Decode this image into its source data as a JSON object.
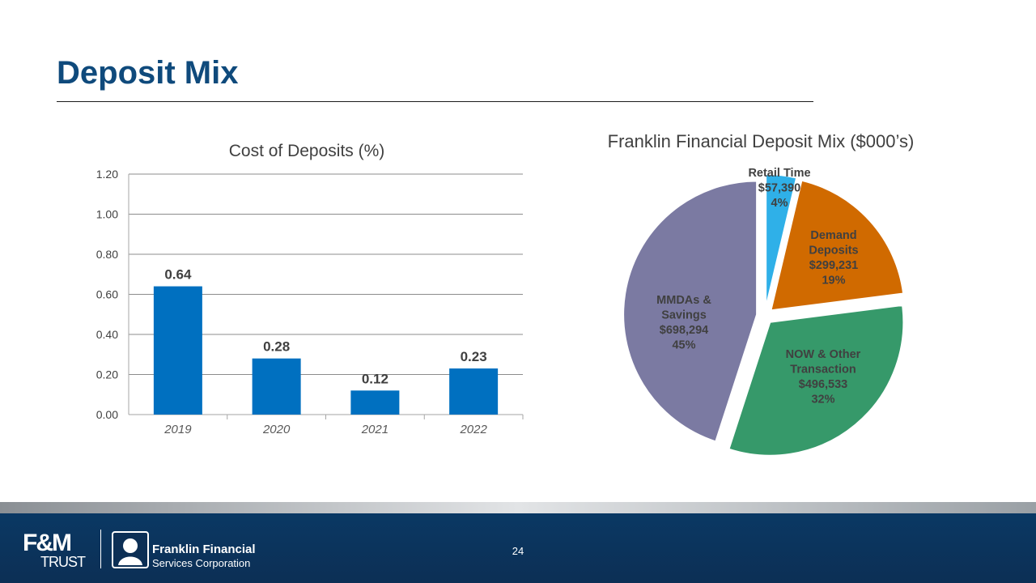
{
  "page": {
    "title": "Deposit Mix",
    "page_number": "24"
  },
  "colors": {
    "title": "#0f4a7c",
    "bar": "#0070c0",
    "footer": "#0c2f55"
  },
  "footer": {
    "logo_fm_main": "F&M",
    "logo_fm_sub": "TRUST",
    "logo_ff_line1": "Franklin Financial",
    "logo_ff_line2": "Services Corporation"
  },
  "chart_data": [
    {
      "type": "bar",
      "title": "Cost of Deposits (%)",
      "categories": [
        "2019",
        "2020",
        "2021",
        "2022"
      ],
      "values": [
        0.64,
        0.28,
        0.12,
        0.23
      ],
      "value_labels": [
        "0.64",
        "0.28",
        "0.12",
        "0.23"
      ],
      "yticks": [
        "0.00",
        "0.20",
        "0.40",
        "0.60",
        "0.80",
        "1.00",
        "1.20"
      ],
      "ylim": [
        0,
        1.2
      ],
      "xlabel": "",
      "ylabel": "",
      "grid": true,
      "color": "#0070c0"
    },
    {
      "type": "pie",
      "title": "Franklin Financial Deposit Mix ($000’s)",
      "slices": [
        {
          "name": "Retail Time",
          "value": 57390,
          "amount": "$57,390",
          "percent": "4%",
          "color": "#2fb0e8"
        },
        {
          "name": "Demand Deposits",
          "value": 299231,
          "amount": "$299,231",
          "percent": "19%",
          "color": "#d06a00"
        },
        {
          "name": "NOW & Other Transaction",
          "value": 496533,
          "amount": "$496,533",
          "percent": "32%",
          "color": "#36996a"
        },
        {
          "name": "MMDAs & Savings",
          "value": 698294,
          "amount": "$698,294",
          "percent": "45%",
          "color": "#7b7aa2"
        }
      ]
    }
  ]
}
